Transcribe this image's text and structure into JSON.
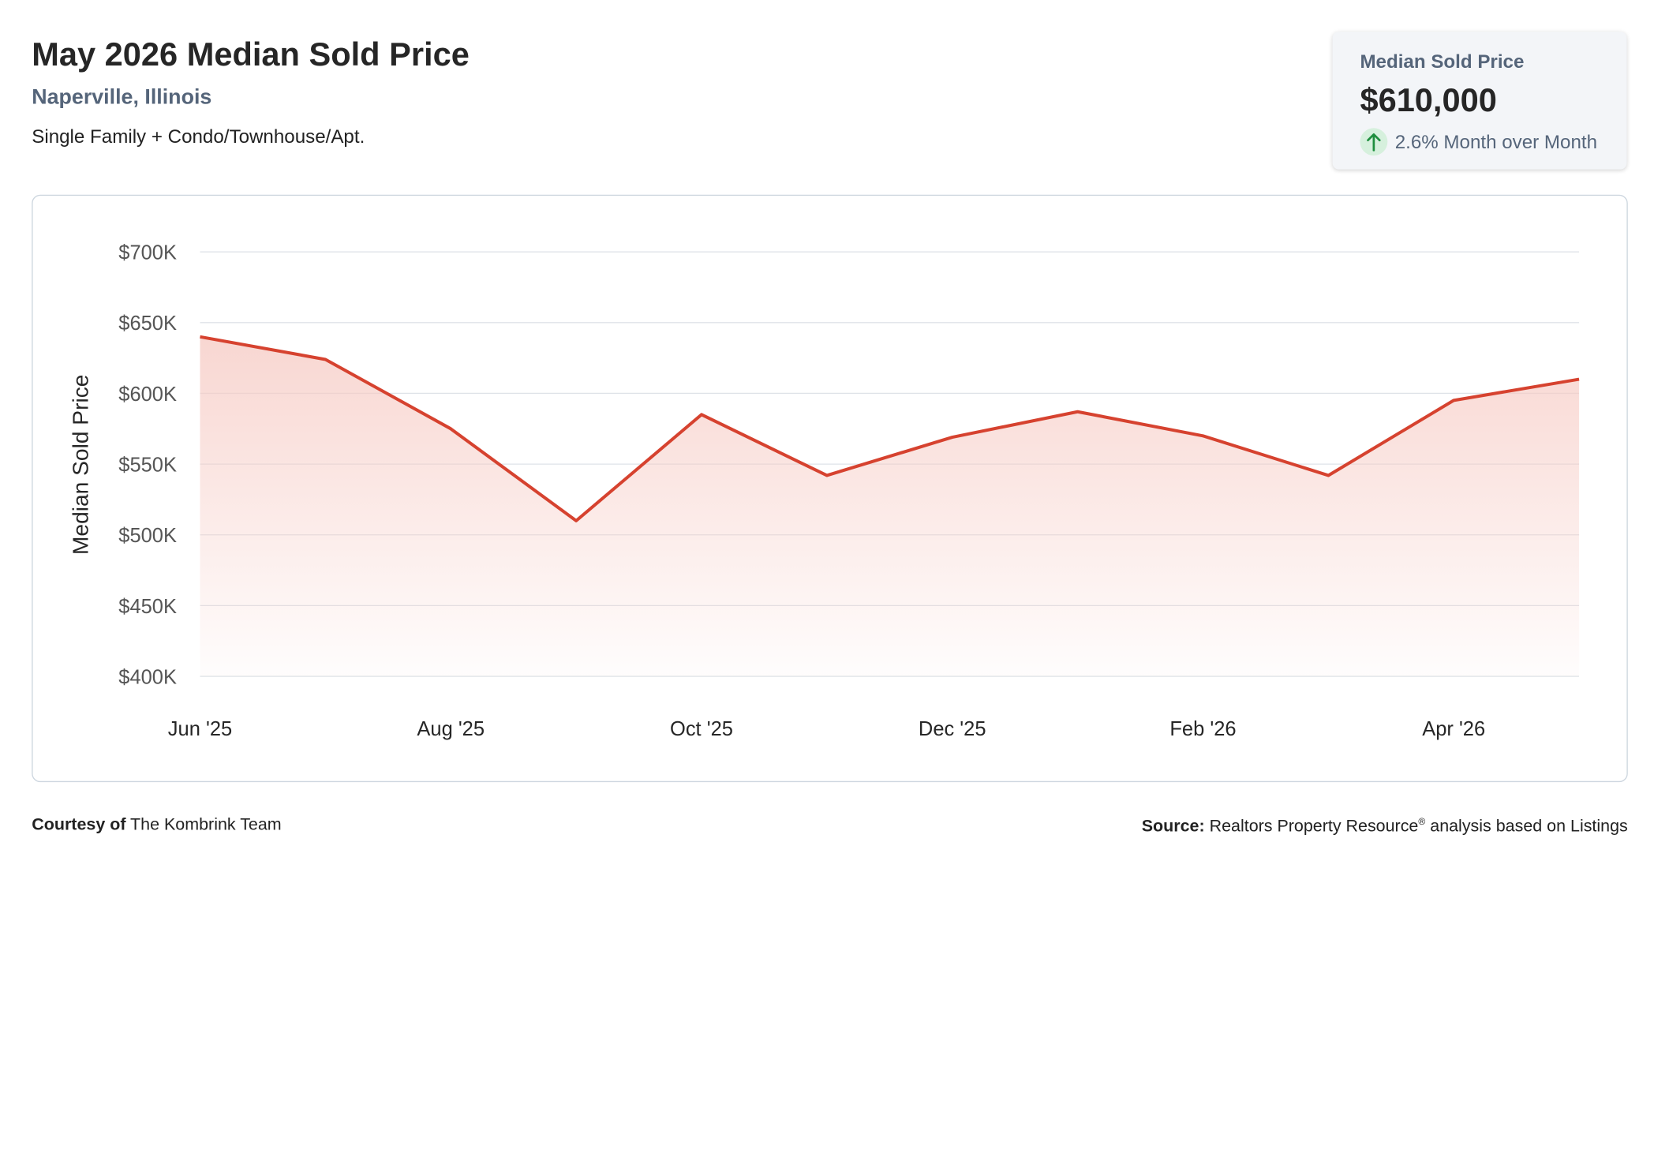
{
  "header": {
    "title": "May 2026 Median Sold Price",
    "location": "Naperville, Illinois",
    "property_types": "Single Family + Condo/Townhouse/Apt."
  },
  "stat_card": {
    "label": "Median Sold Price",
    "value": "$610,000",
    "change_text": "2.6% Month over Month",
    "trend_icon": "arrow-up-icon",
    "trend_color": "#1e8e3e"
  },
  "colors": {
    "line": "#d6422f",
    "area_top": "#f6c9c2",
    "grid": "#dfe3e8"
  },
  "chart_data": {
    "type": "area",
    "x": [
      "Jun '25",
      "Jul '25",
      "Aug '25",
      "Sep '25",
      "Oct '25",
      "Nov '25",
      "Dec '25",
      "Jan '26",
      "Feb '26",
      "Mar '26",
      "Apr '26",
      "May '26"
    ],
    "x_tick_labels": [
      "Jun '25",
      "Aug '25",
      "Oct '25",
      "Dec '25",
      "Feb '26",
      "Apr '26"
    ],
    "series": [
      {
        "values": [
          640000,
          624000,
          575000,
          510000,
          585000,
          542000,
          569000,
          587000,
          570000,
          542000,
          595000,
          610000
        ]
      }
    ],
    "ylabel": "Median Sold Price",
    "ylim": [
      400000,
      700000
    ],
    "y_ticks": [
      700000,
      650000,
      600000,
      550000,
      500000,
      450000,
      400000
    ],
    "y_tick_labels": [
      "$700K",
      "$650K",
      "$600K",
      "$550K",
      "$500K",
      "$450K",
      "$400K"
    ],
    "grid": true,
    "legend": "none"
  },
  "footer": {
    "courtesy_prefix": "Courtesy of",
    "courtesy_name": "The Kombrink Team",
    "source_prefix": "Source:",
    "source_name": "Realtors Property Resource",
    "source_mark": "®",
    "source_suffix": "analysis based on Listings"
  }
}
